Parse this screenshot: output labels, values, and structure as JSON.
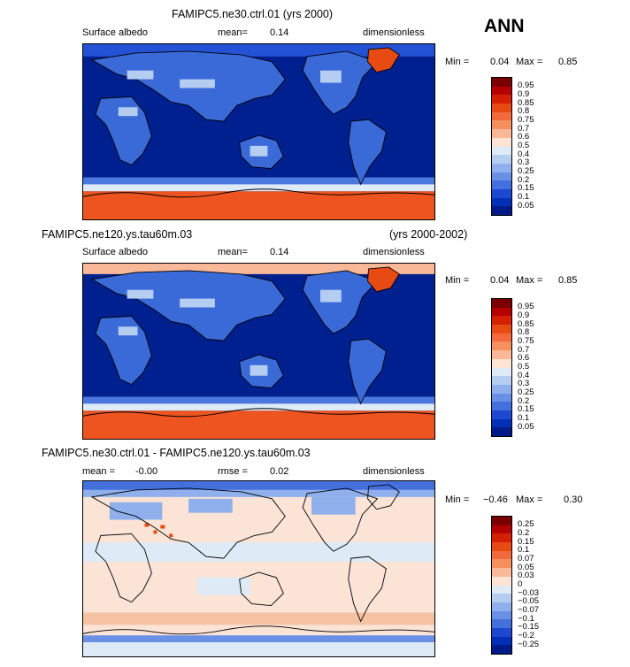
{
  "season": "ANN",
  "panels": [
    {
      "title": "FAMIPC5.ne30.ctrl.01 (yrs 2000)",
      "years": "",
      "var_name": "Surface albedo",
      "mean_label": "mean=",
      "mean_value": "0.14",
      "units": "dimensionless",
      "min_label": "Min =",
      "min_value": "0.04",
      "max_label": "Max =",
      "max_value": "0.85",
      "colorbar_labels": [
        "0.95",
        "0.9",
        "0.85",
        "0.8",
        "0.75",
        "0.7",
        "0.6",
        "0.5",
        "0.4",
        "0.3",
        "0.25",
        "0.2",
        "0.15",
        "0.1",
        "0.05"
      ],
      "colorbar_colors": [
        "#7a0000",
        "#b40000",
        "#d42000",
        "#e84a14",
        "#f26a3c",
        "#f5905e",
        "#f9b897",
        "#fde4d4",
        "#deebf7",
        "#b5cdf0",
        "#8fb0ec",
        "#6a90e6",
        "#4470de",
        "#1e48d0",
        "#002fb8",
        "#001a88"
      ]
    },
    {
      "title": "FAMIPC5.ne120.ys.tau60m.03",
      "years": "(yrs 2000-2002)",
      "var_name": "Surface albedo",
      "mean_label": "mean=",
      "mean_value": "0.14",
      "units": "dimensionless",
      "min_label": "Min =",
      "min_value": "0.04",
      "max_label": "Max =",
      "max_value": "0.85",
      "colorbar_labels": [
        "0.95",
        "0.9",
        "0.85",
        "0.8",
        "0.75",
        "0.7",
        "0.6",
        "0.5",
        "0.4",
        "0.3",
        "0.25",
        "0.2",
        "0.15",
        "0.1",
        "0.05"
      ],
      "colorbar_colors": [
        "#7a0000",
        "#b40000",
        "#d42000",
        "#e84a14",
        "#f26a3c",
        "#f5905e",
        "#f9b897",
        "#fde4d4",
        "#deebf7",
        "#b5cdf0",
        "#8fb0ec",
        "#6a90e6",
        "#4470de",
        "#1e48d0",
        "#002fb8",
        "#001a88"
      ]
    },
    {
      "title": "FAMIPC5.ne30.ctrl.01 - FAMIPC5.ne120.ys.tau60m.03",
      "years": "",
      "var_name": "",
      "mean_label": "mean =",
      "mean_value": "-0.00",
      "rmse_label": "rmse =",
      "rmse_value": "0.02",
      "units": "dimensionless",
      "min_label": "Min =",
      "min_value": "−0.46",
      "max_label": "Max =",
      "max_value": "0.30",
      "colorbar_labels": [
        "0.25",
        "0.2",
        "0.15",
        "0.1",
        "0.07",
        "0.05",
        "0.03",
        "0",
        "−0.03",
        "−0.05",
        "−0.07",
        "−0.1",
        "−0.15",
        "−0.2",
        "−0.25"
      ],
      "colorbar_colors": [
        "#7a0000",
        "#b40000",
        "#d42000",
        "#e84a14",
        "#f26a3c",
        "#f5905e",
        "#f9b897",
        "#fde4d4",
        "#deebf7",
        "#b5cdf0",
        "#8fb0ec",
        "#6a90e6",
        "#4470de",
        "#1e48d0",
        "#002fb8",
        "#001a88"
      ]
    }
  ]
}
